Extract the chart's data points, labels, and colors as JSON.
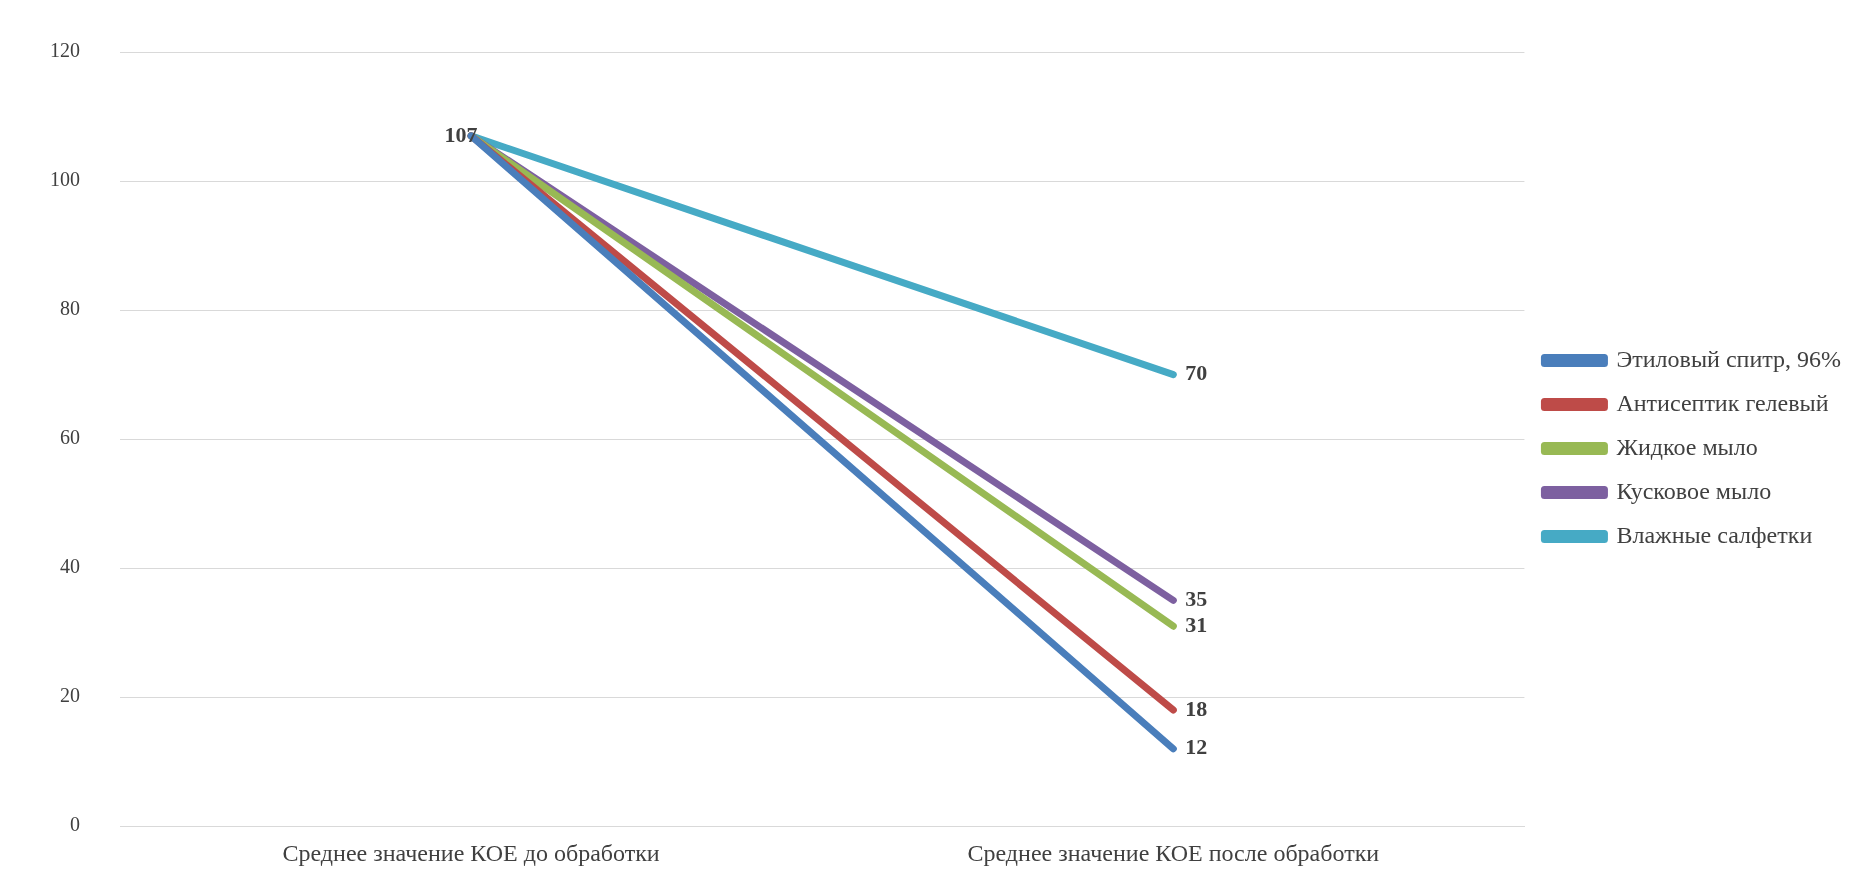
{
  "chart_data": {
    "type": "line",
    "categories": [
      "Среднее значение КОЕ до обработки",
      "Среднее значение КОЕ после обработки"
    ],
    "series": [
      {
        "name": "Этиловый спитр, 96%",
        "color": "#4a7ebb",
        "values": [
          107,
          12
        ],
        "value_labels": [
          "107",
          "12"
        ]
      },
      {
        "name": "Антисептик гелевый",
        "color": "#be4b48",
        "values": [
          107,
          18
        ],
        "value_labels": [
          null,
          "18"
        ]
      },
      {
        "name": "Жидкое мыло",
        "color": "#98b954",
        "values": [
          107,
          31
        ],
        "value_labels": [
          null,
          "31"
        ]
      },
      {
        "name": "Кусковое мыло",
        "color": "#7d60a0",
        "values": [
          107,
          35
        ],
        "value_labels": [
          null,
          "35"
        ]
      },
      {
        "name": "Влажные салфетки",
        "color": "#46aac5",
        "values": [
          107,
          70
        ],
        "value_labels": [
          null,
          "70"
        ]
      }
    ],
    "ylim": [
      0,
      120
    ],
    "yticks": [
      0,
      20,
      40,
      60,
      80,
      100,
      120
    ],
    "grid": "y",
    "legend": "right",
    "marker": "none",
    "line_style": "solid"
  }
}
